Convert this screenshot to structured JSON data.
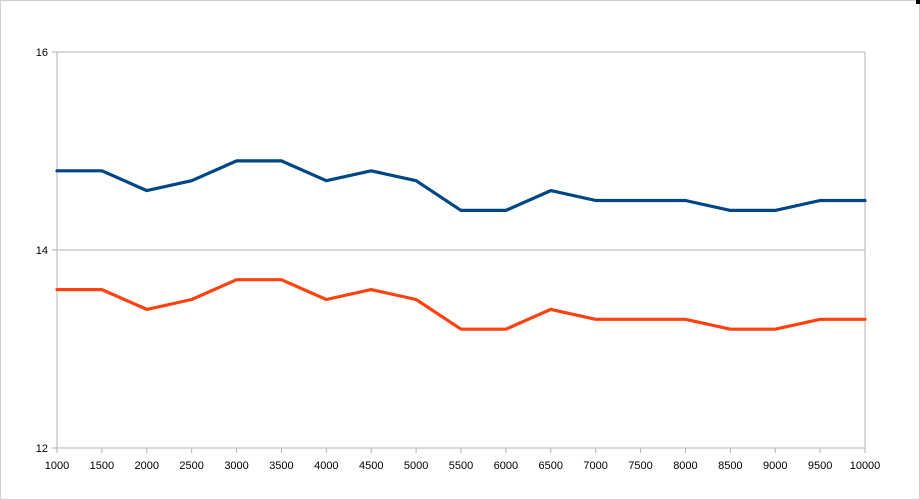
{
  "chart_data": {
    "type": "line",
    "title": "",
    "xlabel": "",
    "ylabel": "",
    "x": [
      1000,
      1500,
      2000,
      2500,
      3000,
      3500,
      4000,
      4500,
      5000,
      5500,
      6000,
      6500,
      7000,
      7500,
      8000,
      8500,
      9000,
      9500,
      10000
    ],
    "x_tick_labels": [
      "1000",
      "1500",
      "2000",
      "2500",
      "3000",
      "3500",
      "4000",
      "4500",
      "5000",
      "5500",
      "6000",
      "6500",
      "7000",
      "7500",
      "8000",
      "8500",
      "9000",
      "9500",
      "10000"
    ],
    "ylim": [
      12,
      16
    ],
    "y_ticks": [
      12,
      14,
      16
    ],
    "y_tick_labels": [
      "12",
      "14",
      "16"
    ],
    "grid": true,
    "legend": "none",
    "series": [
      {
        "color": "#004586",
        "values": [
          14.8,
          14.8,
          14.6,
          14.7,
          14.9,
          14.9,
          14.7,
          14.8,
          14.7,
          14.4,
          14.4,
          14.6,
          14.5,
          14.5,
          14.5,
          14.4,
          14.4,
          14.5,
          14.5
        ]
      },
      {
        "color": "#ff420e",
        "values": [
          13.6,
          13.6,
          13.4,
          13.5,
          13.7,
          13.7,
          13.5,
          13.6,
          13.5,
          13.2,
          13.2,
          13.4,
          13.3,
          13.3,
          13.3,
          13.2,
          13.2,
          13.3,
          13.3
        ]
      }
    ]
  }
}
